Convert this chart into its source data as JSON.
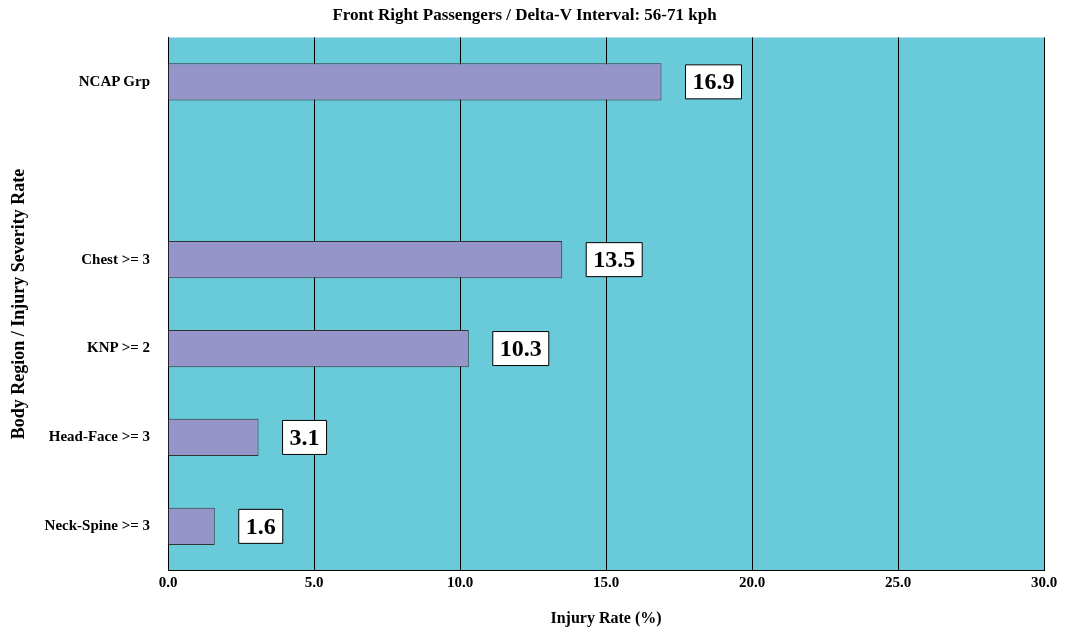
{
  "chart_data": {
    "type": "bar",
    "orientation": "horizontal",
    "title": "Front Right Passengers / Delta-V Interval: 56-71 kph",
    "xlabel": "Injury Rate (%)",
    "ylabel": "Body Region / Injury Severity Rate",
    "categories": [
      "NCAP Grp",
      null,
      "Chest >= 3",
      "KNP >= 2",
      "Head-Face >= 3",
      "Neck-Spine >= 3"
    ],
    "values": [
      16.9,
      null,
      13.5,
      10.3,
      3.1,
      1.6
    ],
    "color": "#9595c9",
    "xlim": [
      0,
      30
    ],
    "xticks": [
      {
        "value": 0,
        "label": "0.0"
      },
      {
        "value": 5,
        "label": "5.0"
      },
      {
        "value": 10,
        "label": "10.0"
      },
      {
        "value": 15,
        "label": "15.0"
      },
      {
        "value": 20,
        "label": "20.0"
      },
      {
        "value": 25,
        "label": "25.0"
      },
      {
        "value": 30,
        "label": "30.0"
      }
    ],
    "grid": "x",
    "legend": false,
    "data_labels": true
  }
}
